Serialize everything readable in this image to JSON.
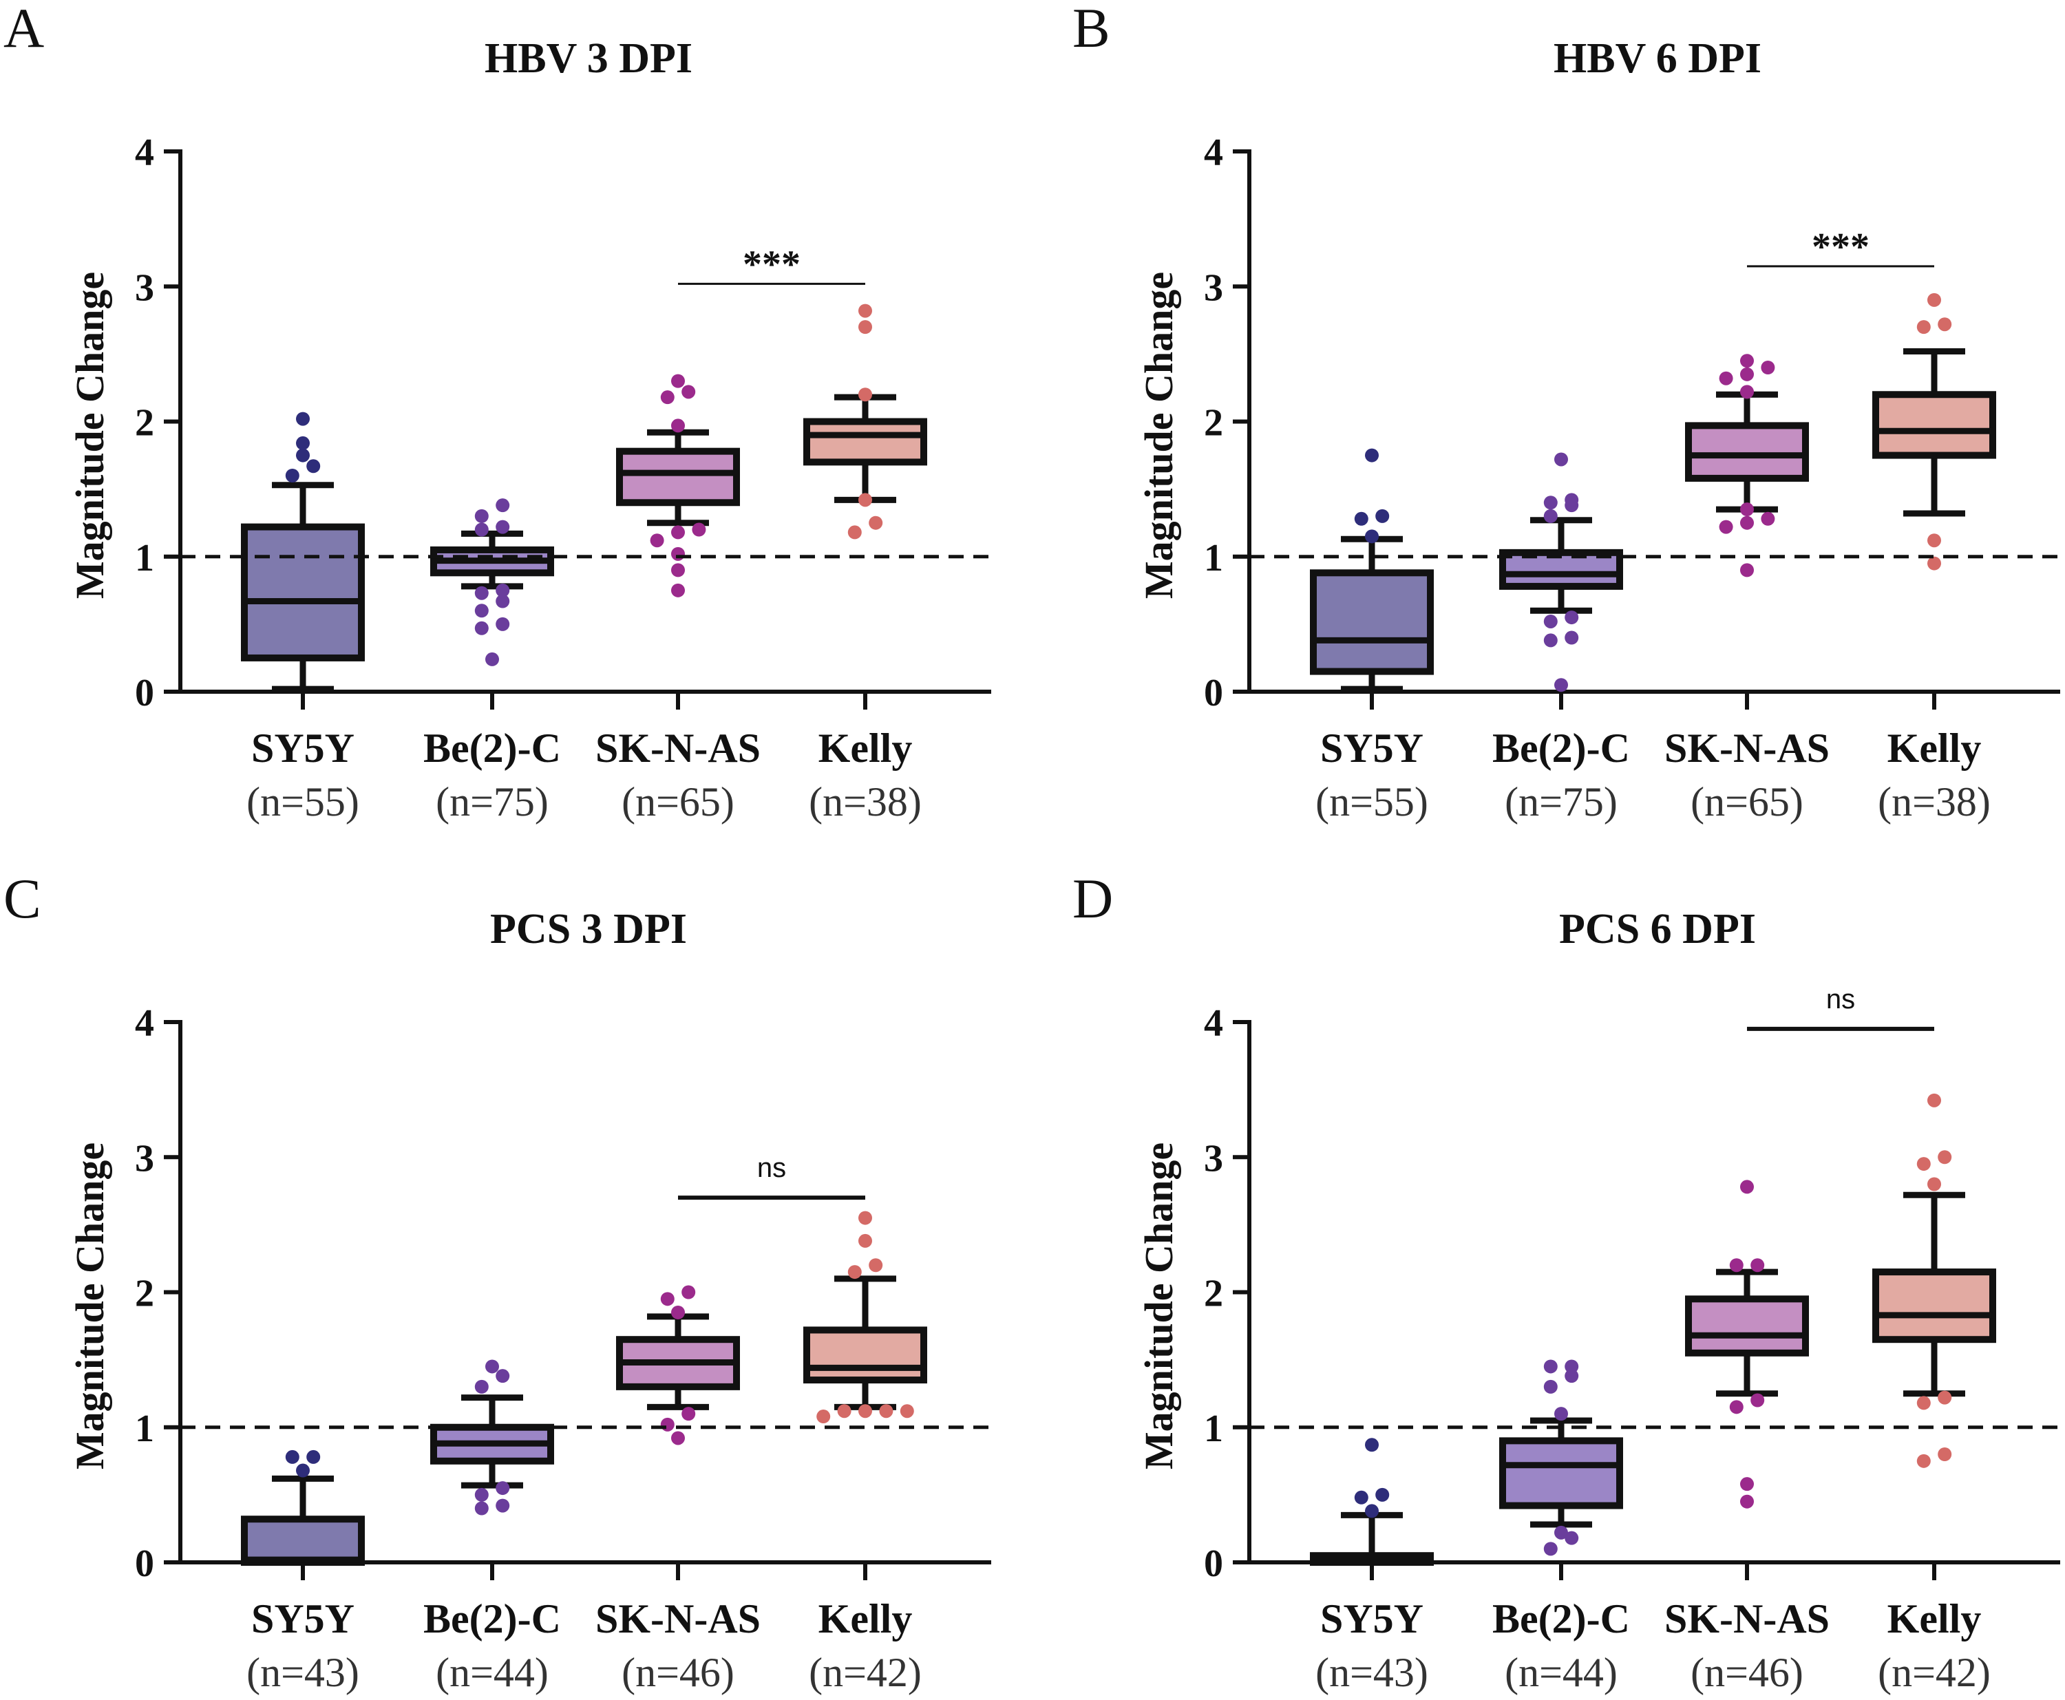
{
  "y_axis_label": "Magnitude  Change",
  "reference_line": 1,
  "colors": {
    "SY5Y": {
      "fill": "#7f7aad",
      "dot": "#2e2d7a"
    },
    "Be(2)-C": {
      "fill": "#9b86c6",
      "dot": "#6a3d9c"
    },
    "SK-N-AS": {
      "fill": "#c48fc2",
      "dot": "#9b2a8c"
    },
    "Kelly": {
      "fill": "#e2aaa2",
      "dot": "#d46a66"
    }
  },
  "chart_data": [
    {
      "panel": "A",
      "type": "box",
      "title": "HBV 3 DPI",
      "ylabel": "Magnitude  Change",
      "ylim": [
        0,
        4
      ],
      "yticks": [
        "0",
        "1",
        "2",
        "3",
        "4"
      ],
      "categories": [
        "SY5Y",
        "Be(2)-C",
        "SK-N-AS",
        "Kelly"
      ],
      "n_labels": [
        "(n=55)",
        "(n=75)",
        "(n=65)",
        "(n=38)"
      ],
      "boxes": [
        {
          "whisker_low": 0.02,
          "q1": 0.25,
          "median": 0.67,
          "q3": 1.22,
          "whisker_high": 1.53,
          "outliers": [
            1.6,
            1.67,
            1.75,
            1.84,
            2.02
          ]
        },
        {
          "whisker_low": 0.78,
          "q1": 0.88,
          "median": 0.97,
          "q3": 1.05,
          "whisker_high": 1.17,
          "outliers": [
            0.24,
            0.47,
            0.5,
            0.6,
            0.67,
            0.73,
            0.75,
            1.2,
            1.22,
            1.3,
            1.38
          ]
        },
        {
          "whisker_low": 1.25,
          "q1": 1.4,
          "median": 1.62,
          "q3": 1.78,
          "whisker_high": 1.92,
          "outliers": [
            0.75,
            0.9,
            1.02,
            1.12,
            1.18,
            1.2,
            1.97,
            2.18,
            2.22,
            2.3
          ]
        },
        {
          "whisker_low": 1.42,
          "q1": 1.7,
          "median": 1.9,
          "q3": 2.0,
          "whisker_high": 2.18,
          "outliers": [
            1.18,
            1.25,
            1.42,
            2.2,
            2.7,
            2.82
          ]
        }
      ],
      "comparison": {
        "from": "SK-N-AS",
        "to": "Kelly",
        "label": "***",
        "y": 3.02
      }
    },
    {
      "panel": "B",
      "type": "box",
      "title": "HBV 6 DPI",
      "ylabel": "Magnitude  Change",
      "ylim": [
        0,
        4
      ],
      "yticks": [
        "0",
        "1",
        "2",
        "3",
        "4"
      ],
      "categories": [
        "SY5Y",
        "Be(2)-C",
        "SK-N-AS",
        "Kelly"
      ],
      "n_labels": [
        "(n=55)",
        "(n=75)",
        "(n=65)",
        "(n=38)"
      ],
      "boxes": [
        {
          "whisker_low": 0.02,
          "q1": 0.15,
          "median": 0.38,
          "q3": 0.88,
          "whisker_high": 1.13,
          "outliers": [
            1.15,
            1.28,
            1.3,
            1.75
          ]
        },
        {
          "whisker_low": 0.6,
          "q1": 0.78,
          "median": 0.87,
          "q3": 1.03,
          "whisker_high": 1.27,
          "outliers": [
            0.05,
            0.38,
            0.4,
            0.52,
            0.55,
            1.3,
            1.38,
            1.4,
            1.42,
            1.72
          ]
        },
        {
          "whisker_low": 1.35,
          "q1": 1.58,
          "median": 1.75,
          "q3": 1.97,
          "whisker_high": 2.2,
          "outliers": [
            0.9,
            1.22,
            1.25,
            1.28,
            1.35,
            2.22,
            2.32,
            2.35,
            2.4,
            2.45
          ]
        },
        {
          "whisker_low": 1.32,
          "q1": 1.75,
          "median": 1.93,
          "q3": 2.2,
          "whisker_high": 2.52,
          "outliers": [
            0.95,
            1.12,
            2.7,
            2.72,
            2.9
          ]
        }
      ],
      "comparison": {
        "from": "SK-N-AS",
        "to": "Kelly",
        "label": "***",
        "y": 3.15
      }
    },
    {
      "panel": "C",
      "type": "box",
      "title": "PCS 3 DPI",
      "ylabel": "Magnitude  Change",
      "ylim": [
        0,
        4
      ],
      "yticks": [
        "0",
        "1",
        "2",
        "3",
        "4"
      ],
      "categories": [
        "SY5Y",
        "Be(2)-C",
        "SK-N-AS",
        "Kelly"
      ],
      "n_labels": [
        "(n=43)",
        "(n=44)",
        "(n=46)",
        "(n=42)"
      ],
      "boxes": [
        {
          "whisker_low": 0.0,
          "q1": 0.0,
          "median": 0.02,
          "q3": 0.32,
          "whisker_high": 0.62,
          "outliers": [
            0.68,
            0.78,
            0.78
          ]
        },
        {
          "whisker_low": 0.57,
          "q1": 0.75,
          "median": 0.88,
          "q3": 1.0,
          "whisker_high": 1.22,
          "outliers": [
            0.4,
            0.42,
            0.5,
            0.55,
            1.3,
            1.38,
            1.45
          ]
        },
        {
          "whisker_low": 1.15,
          "q1": 1.3,
          "median": 1.48,
          "q3": 1.65,
          "whisker_high": 1.82,
          "outliers": [
            0.92,
            1.02,
            1.1,
            1.85,
            1.95,
            2.0
          ]
        },
        {
          "whisker_low": 1.15,
          "q1": 1.35,
          "median": 1.44,
          "q3": 1.72,
          "whisker_high": 2.1,
          "outliers": [
            1.08,
            1.12,
            1.12,
            1.12,
            1.12,
            2.15,
            2.2,
            2.38,
            2.55
          ]
        }
      ],
      "comparison": {
        "from": "SK-N-AS",
        "to": "Kelly",
        "label": "ns",
        "y": 2.7
      }
    },
    {
      "panel": "D",
      "type": "box",
      "title": "PCS 6 DPI",
      "ylabel": "Magnitude  Change",
      "ylim": [
        0,
        4
      ],
      "yticks": [
        "0",
        "1",
        "2",
        "3",
        "4"
      ],
      "categories": [
        "SY5Y",
        "Be(2)-C",
        "SK-N-AS",
        "Kelly"
      ],
      "n_labels": [
        "(n=43)",
        "(n=44)",
        "(n=46)",
        "(n=42)"
      ],
      "boxes": [
        {
          "whisker_low": 0.0,
          "q1": 0.0,
          "median": 0.0,
          "q3": 0.05,
          "whisker_high": 0.35,
          "outliers": [
            0.38,
            0.48,
            0.5,
            0.87
          ]
        },
        {
          "whisker_low": 0.28,
          "q1": 0.42,
          "median": 0.72,
          "q3": 0.9,
          "whisker_high": 1.05,
          "outliers": [
            0.1,
            0.18,
            0.22,
            1.1,
            1.3,
            1.38,
            1.45,
            1.45
          ]
        },
        {
          "whisker_low": 1.25,
          "q1": 1.55,
          "median": 1.68,
          "q3": 1.95,
          "whisker_high": 2.15,
          "outliers": [
            0.45,
            0.58,
            1.15,
            1.2,
            2.2,
            2.2,
            2.78
          ]
        },
        {
          "whisker_low": 1.25,
          "q1": 1.65,
          "median": 1.83,
          "q3": 2.15,
          "whisker_high": 2.72,
          "outliers": [
            0.75,
            0.8,
            1.18,
            1.22,
            2.8,
            2.95,
            3.0,
            3.42
          ]
        }
      ],
      "comparison": {
        "from": "SK-N-AS",
        "to": "Kelly",
        "label": "ns",
        "y": 3.95
      }
    }
  ]
}
